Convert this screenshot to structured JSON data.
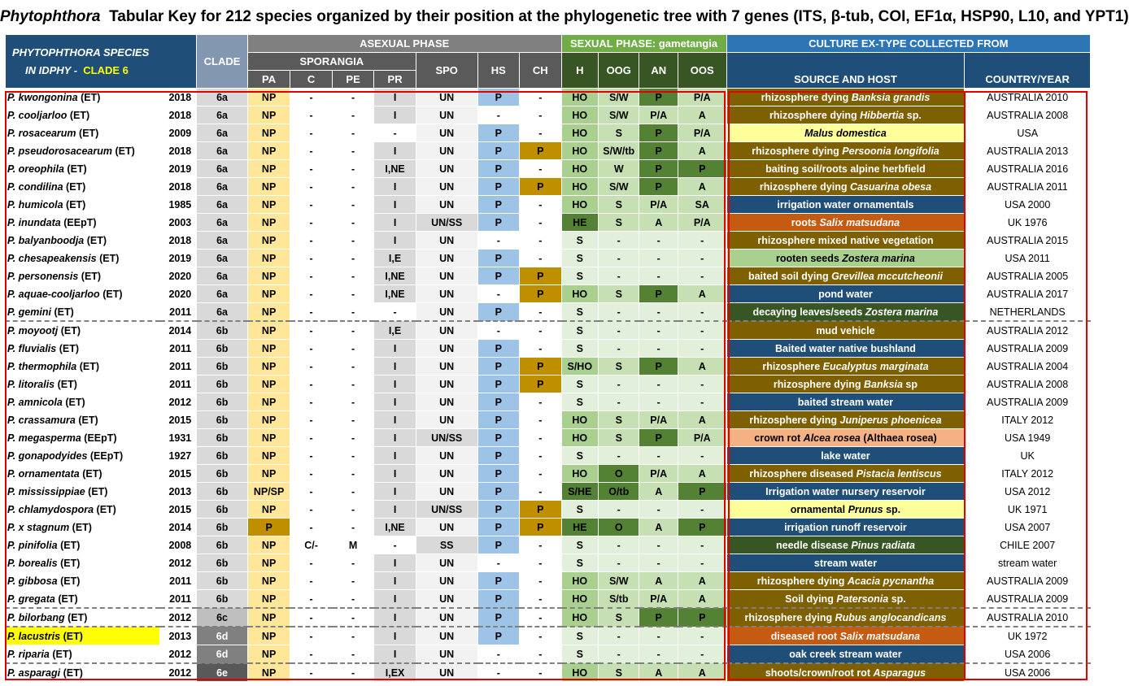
{
  "title_parts": {
    "genus": "Phytophthora",
    "rest": "Tabular Key for 212 species organized by their position at the phylogenetic tree with 7 genes (ITS, β-tub, COI, EF1α, HSP90, L10, and YPT1)"
  },
  "header": {
    "species_label1": "PHYTOPHTHORA SPECIES",
    "species_label2": "IN IDPHY -",
    "clade_label": "CLADE 6",
    "clade": "CLADE",
    "asexual": "ASEXUAL PHASE",
    "sporangia": "SPORANGIA",
    "sexual": "SEXUAL PHASE: gametangia",
    "culture": "CULTURE EX-TYPE COLLECTED FROM",
    "cols": {
      "pa": "PA",
      "c": "C",
      "pe": "PE",
      "pr": "PR",
      "spo": "SPO",
      "hs": "HS",
      "ch": "CH",
      "h": "H",
      "oog": "OOG",
      "an": "AN",
      "oos": "OOS",
      "source": "SOURCE AND HOST",
      "country": "COUNTRY/YEAR"
    }
  },
  "rows": [
    {
      "sp": "P. kwongonina",
      "tag": "(ET)",
      "yr": "2018",
      "clade": "6a",
      "pa": "NP",
      "c": "-",
      "pe": "-",
      "pr": "I",
      "spo": "UN",
      "hs": "P",
      "ch": "-",
      "h": "HO",
      "oog": "S/W",
      "an": "P",
      "oos": "P/A",
      "src": "rhizosphere dying ",
      "host": "Banksia grandis",
      "src2": "",
      "ctry": "AUSTRALIA 2010",
      "sc": "s-olive"
    },
    {
      "sp": "P. cooljarloo",
      "tag": "(ET)",
      "yr": "2018",
      "clade": "6a",
      "pa": "NP",
      "c": "-",
      "pe": "-",
      "pr": "I",
      "spo": "UN",
      "hs": "-",
      "ch": "-",
      "h": "HO",
      "oog": "S/W",
      "an": "P/A",
      "oos": "A",
      "src": "rhizosphere dying ",
      "host": "Hibbertia",
      "src2": " sp.",
      "ctry": "AUSTRALIA 2008",
      "sc": "s-olive"
    },
    {
      "sp": "P. rosacearum",
      "tag": "(ET)",
      "yr": "2009",
      "clade": "6a",
      "pa": "NP",
      "c": "-",
      "pe": "-",
      "pr": "-",
      "spo": "UN",
      "hs": "P",
      "ch": "-",
      "h": "HO",
      "oog": "S",
      "an": "P",
      "oos": "P/A",
      "src": "",
      "host": "Malus domestica",
      "src2": "",
      "ctry": "USA",
      "sc": "s-yellow"
    },
    {
      "sp": "P. pseudorosacearum",
      "tag": "(ET)",
      "yr": "2018",
      "clade": "6a",
      "pa": "NP",
      "c": "-",
      "pe": "-",
      "pr": "I",
      "spo": "UN",
      "hs": "P",
      "ch": "P",
      "h": "HO",
      "oog": "S/W/tb",
      "an": "P",
      "oos": "A",
      "src": "rhizosphere dying ",
      "host": "Persoonia longifolia",
      "src2": "",
      "ctry": "AUSTRALIA 2013",
      "sc": "s-olive"
    },
    {
      "sp": "P. oreophila",
      "tag": "(ET)",
      "yr": "2019",
      "clade": "6a",
      "pa": "NP",
      "c": "-",
      "pe": "-",
      "pr": "I,NE",
      "spo": "UN",
      "hs": "P",
      "ch": "-",
      "h": "HO",
      "oog": "W",
      "an": "P",
      "oos": "P",
      "src": "baiting soil/roots alpine herbfield",
      "host": "",
      "src2": "",
      "ctry": "AUSTRALIA 2016",
      "sc": "s-olive"
    },
    {
      "sp": "P. condilina",
      "tag": "(ET)",
      "yr": "2018",
      "clade": "6a",
      "pa": "NP",
      "c": "-",
      "pe": "-",
      "pr": "I",
      "spo": "UN",
      "hs": "P",
      "ch": "P",
      "h": "HO",
      "oog": "S/W",
      "an": "P",
      "oos": "A",
      "src": "rhizosphere dying ",
      "host": "Casuarina obesa",
      "src2": "",
      "ctry": "AUSTRALIA 2011",
      "sc": "s-olive"
    },
    {
      "sp": "P. humicola",
      "tag": "(ET)",
      "yr": "1985",
      "clade": "6a",
      "pa": "NP",
      "c": "-",
      "pe": "-",
      "pr": "I",
      "spo": "UN",
      "hs": "P",
      "ch": "-",
      "h": "HO",
      "oog": "S",
      "an": "P/A",
      "oos": "SA",
      "src": "irrigation water ornamentals",
      "host": "",
      "src2": "",
      "ctry": "USA 2000",
      "sc": "s-navy"
    },
    {
      "sp": "P. inundata",
      "tag": "(EEpT)",
      "yr": "2003",
      "clade": "6a",
      "pa": "NP",
      "c": "-",
      "pe": "-",
      "pr": "I",
      "spo": "UN/SS",
      "hs": "P",
      "ch": "-",
      "h": "HE",
      "oog": "S",
      "an": "A",
      "oos": "P/A",
      "src": "roots ",
      "host": "Salix matsudana",
      "src2": "",
      "ctry": "UK 1976",
      "sc": "s-orange"
    },
    {
      "sp": "P. balyanboodja",
      "tag": "(ET)",
      "yr": "2018",
      "clade": "6a",
      "pa": "NP",
      "c": "-",
      "pe": "-",
      "pr": "I",
      "spo": "UN",
      "hs": "-",
      "ch": "-",
      "h": "S",
      "oog": "-",
      "an": "-",
      "oos": "-",
      "src": "rhizosphere mixed native vegetation",
      "host": "",
      "src2": "",
      "ctry": "AUSTRALIA 2015",
      "sc": "s-olive"
    },
    {
      "sp": "P. chesapeakensis",
      "tag": "(ET)",
      "yr": "2019",
      "clade": "6a",
      "pa": "NP",
      "c": "-",
      "pe": "-",
      "pr": "I,E",
      "spo": "UN",
      "hs": "P",
      "ch": "-",
      "h": "S",
      "oog": "-",
      "an": "-",
      "oos": "-",
      "src": "rooten seeds ",
      "host": "Zostera marina",
      "src2": "",
      "ctry": "USA 2011",
      "sc": "s-lgreen"
    },
    {
      "sp": "P. personensis",
      "tag": "(ET)",
      "yr": "2020",
      "clade": "6a",
      "pa": "NP",
      "c": "-",
      "pe": "-",
      "pr": "I,NE",
      "spo": "UN",
      "hs": "P",
      "ch": "P",
      "h": "S",
      "oog": "-",
      "an": "-",
      "oos": "-",
      "src": "baited soil dying ",
      "host": "Grevillea mccutcheonii",
      "src2": "",
      "ctry": "AUSTRALIA 2005",
      "sc": "s-olive"
    },
    {
      "sp": "P. aquae-cooljarloo",
      "tag": "(ET)",
      "yr": "2020",
      "clade": "6a",
      "pa": "NP",
      "c": "-",
      "pe": "-",
      "pr": "I,NE",
      "spo": "UN",
      "hs": "-",
      "ch": "P",
      "h": "HO",
      "oog": "S",
      "an": "P",
      "oos": "A",
      "src": "pond water",
      "host": "",
      "src2": "",
      "ctry": "AUSTRALIA 2017",
      "sc": "s-navy"
    },
    {
      "sp": "P. gemini",
      "tag": "(ET)",
      "yr": "2011",
      "clade": "6a",
      "pa": "NP",
      "c": "-",
      "pe": "-",
      "pr": "-",
      "spo": "UN",
      "hs": "P",
      "ch": "-",
      "h": "S",
      "oog": "-",
      "an": "-",
      "oos": "-",
      "src": "decaying leaves/seeds ",
      "host": "Zostera marina",
      "src2": "",
      "ctry": "NETHERLANDS",
      "sc": "s-dgreen"
    },
    {
      "sp": "P. moyootj",
      "tag": "(ET)",
      "yr": "2014",
      "clade": "6b",
      "pa": "NP",
      "c": "-",
      "pe": "-",
      "pr": "I,E",
      "spo": "UN",
      "hs": "-",
      "ch": "-",
      "h": "S",
      "oog": "-",
      "an": "-",
      "oos": "-",
      "src": "mud vehicle",
      "host": "",
      "src2": "",
      "ctry": "AUSTRALIA 2012",
      "sc": "s-olive",
      "sep": true
    },
    {
      "sp": "P. fluvialis",
      "tag": "(ET)",
      "yr": "2011",
      "clade": "6b",
      "pa": "NP",
      "c": "-",
      "pe": "-",
      "pr": "I",
      "spo": "UN",
      "hs": "P",
      "ch": "-",
      "h": "S",
      "oog": "-",
      "an": "-",
      "oos": "-",
      "src": "Baited  water native bushland",
      "host": "",
      "src2": "",
      "ctry": "AUSTRALIA 2009",
      "sc": "s-navy"
    },
    {
      "sp": "P. thermophila",
      "tag": "(ET)",
      "yr": "2011",
      "clade": "6b",
      "pa": "NP",
      "c": "-",
      "pe": "-",
      "pr": "I",
      "spo": "UN",
      "hs": "P",
      "ch": "P",
      "h": "S/HO",
      "oog": "S",
      "an": "P",
      "oos": "A",
      "src": "rhizosphere ",
      "host": "Eucalyptus marginata",
      "src2": "",
      "ctry": "AUSTRALIA 2004",
      "sc": "s-olive"
    },
    {
      "sp": "P. litoralis",
      "tag": "(ET)",
      "yr": "2011",
      "clade": "6b",
      "pa": "NP",
      "c": "-",
      "pe": "-",
      "pr": "I",
      "spo": "UN",
      "hs": "P",
      "ch": "P",
      "h": "S",
      "oog": "-",
      "an": "-",
      "oos": "-",
      "src": "rhizosphere dying ",
      "host": "Banksia",
      "src2": " sp",
      "ctry": "AUSTRALIA 2008",
      "sc": "s-olive"
    },
    {
      "sp": "P. amnicola",
      "tag": "(ET)",
      "yr": "2012",
      "clade": "6b",
      "pa": "NP",
      "c": "-",
      "pe": "-",
      "pr": "I",
      "spo": "UN",
      "hs": "P",
      "ch": "-",
      "h": "S",
      "oog": "-",
      "an": "-",
      "oos": "-",
      "src": "baited stream water",
      "host": "",
      "src2": "",
      "ctry": "AUSTRALIA 2009",
      "sc": "s-navy"
    },
    {
      "sp": "P. crassamura",
      "tag": "(ET)",
      "yr": "2015",
      "clade": "6b",
      "pa": "NP",
      "c": "-",
      "pe": "-",
      "pr": "I",
      "spo": "UN",
      "hs": "P",
      "ch": "-",
      "h": "HO",
      "oog": "S",
      "an": "P/A",
      "oos": "A",
      "src": "rhizosphere dying ",
      "host": "Juniperus phoenicea",
      "src2": "",
      "ctry": "ITALY 2012",
      "sc": "s-olive"
    },
    {
      "sp": "P. megasperma",
      "tag": "(EEpT)",
      "yr": "1931",
      "clade": "6b",
      "pa": "NP",
      "c": "-",
      "pe": "-",
      "pr": "I",
      "spo": "UN/SS",
      "hs": "P",
      "ch": "-",
      "h": "HO",
      "oog": "S",
      "an": "P",
      "oos": "P/A",
      "src": "crown rot ",
      "host": "Alcea rosea",
      "src2": " (Althaea rosea)",
      "ctry": "USA 1949",
      "sc": "s-peach"
    },
    {
      "sp": "P. gonapodyides",
      "tag": "(EEpT)",
      "yr": "1927",
      "clade": "6b",
      "pa": "NP",
      "c": "-",
      "pe": "-",
      "pr": "I",
      "spo": "UN",
      "hs": "P",
      "ch": "-",
      "h": "S",
      "oog": "-",
      "an": "-",
      "oos": "-",
      "src": "lake water",
      "host": "",
      "src2": "",
      "ctry": "UK",
      "sc": "s-navy"
    },
    {
      "sp": "P. ornamentata",
      "tag": "(ET)",
      "yr": "2015",
      "clade": "6b",
      "pa": "NP",
      "c": "-",
      "pe": "-",
      "pr": "I",
      "spo": "UN",
      "hs": "P",
      "ch": "-",
      "h": "HO",
      "oog": "O",
      "an": "P/A",
      "oos": "A",
      "src": "rhizosphere diseased ",
      "host": "Pistacia lentiscus",
      "src2": "",
      "ctry": "ITALY 2012",
      "sc": "s-olive"
    },
    {
      "sp": "P. mississippiae",
      "tag": "(ET)",
      "yr": "2013",
      "clade": "6b",
      "pa": "NP/SP",
      "c": "-",
      "pe": "-",
      "pr": "I",
      "spo": "UN",
      "hs": "P",
      "ch": "-",
      "h": "S/HE",
      "oog": "O/tb",
      "an": "A",
      "oos": "P",
      "src": "Irrigation water nursery reservoir",
      "host": "",
      "src2": "",
      "ctry": "USA 2012",
      "sc": "s-navy"
    },
    {
      "sp": "P. chlamydospora",
      "tag": "(ET)",
      "yr": "2015",
      "clade": "6b",
      "pa": "NP",
      "c": "-",
      "pe": "-",
      "pr": "I",
      "spo": "UN/SS",
      "hs": "P",
      "ch": "P",
      "h": "S",
      "oog": "-",
      "an": "-",
      "oos": "-",
      "src": "ornamental ",
      "host": "Prunus",
      "src2": " sp.",
      "ctry": "UK 1971",
      "sc": "s-yellow"
    },
    {
      "sp": "P. x stagnum",
      "tag": "(ET)",
      "yr": "2014",
      "clade": "6b",
      "pa": "P",
      "c": "-",
      "pe": "-",
      "pr": "I,NE",
      "spo": "UN",
      "hs": "P",
      "ch": "P",
      "h": "HE",
      "oog": "O",
      "an": "A",
      "oos": "P",
      "src": "irrigation runoff reservoir",
      "host": "",
      "src2": "",
      "ctry": "USA 2007",
      "sc": "s-navy"
    },
    {
      "sp": "P. pinifolia",
      "tag": "(ET)",
      "yr": "2008",
      "clade": "6b",
      "pa": "NP",
      "c": "C/-",
      "pe": "M",
      "pr": "-",
      "spo": "SS",
      "hs": "P",
      "ch": "-",
      "h": "S",
      "oog": "-",
      "an": "-",
      "oos": "-",
      "src": "needle disease ",
      "host": "Pinus radiata",
      "src2": "",
      "ctry": "CHILE 2007",
      "sc": "s-dgreen"
    },
    {
      "sp": "P. borealis",
      "tag": "(ET)",
      "yr": "2012",
      "clade": "6b",
      "pa": "NP",
      "c": "-",
      "pe": "-",
      "pr": "I",
      "spo": "UN",
      "hs": "-",
      "ch": "-",
      "h": "S",
      "oog": "-",
      "an": "-",
      "oos": "-",
      "src": "stream water",
      "host": "",
      "src2": "",
      "ctry": "stream water",
      "sc": "s-navy"
    },
    {
      "sp": "P. gibbosa",
      "tag": "(ET)",
      "yr": "2011",
      "clade": "6b",
      "pa": "NP",
      "c": "-",
      "pe": "-",
      "pr": "I",
      "spo": "UN",
      "hs": "P",
      "ch": "-",
      "h": "HO",
      "oog": "S/W",
      "an": "A",
      "oos": "A",
      "src": "rhizosphere dying ",
      "host": "Acacia pycnantha",
      "src2": "",
      "ctry": "AUSTRALIA 2009",
      "sc": "s-olive"
    },
    {
      "sp": "P. gregata",
      "tag": "(ET)",
      "yr": "2011",
      "clade": "6b",
      "pa": "NP",
      "c": "-",
      "pe": "-",
      "pr": "I",
      "spo": "UN",
      "hs": "P",
      "ch": "-",
      "h": "HO",
      "oog": "S/tb",
      "an": "P/A",
      "oos": "A",
      "src": "Soil dying ",
      "host": "Patersonia",
      "src2": " sp.",
      "ctry": "AUSTRALIA 2009",
      "sc": "s-olive"
    },
    {
      "sp": "P. bilorbang",
      "tag": "(ET)",
      "yr": "2012",
      "clade": "6c",
      "pa": "NP",
      "c": "-",
      "pe": "-",
      "pr": "I",
      "spo": "UN",
      "hs": "P",
      "ch": "-",
      "h": "HO",
      "oog": "S",
      "an": "P",
      "oos": "P",
      "src": "rhizosphere dying ",
      "host": "Rubus anglocandicans",
      "src2": "",
      "ctry": "AUSTRALIA 2010",
      "sc": "s-olive",
      "sep": true
    },
    {
      "sp": "P. lacustris",
      "tag": "(ET)",
      "yr": "2013",
      "clade": "6d",
      "pa": "NP",
      "c": "-",
      "pe": "-",
      "pr": "I",
      "spo": "UN",
      "hs": "P",
      "ch": "-",
      "h": "S",
      "oog": "-",
      "an": "-",
      "oos": "-",
      "src": "diseased root ",
      "host": "Salix matsudana",
      "src2": "",
      "ctry": "UK 1972",
      "sc": "s-orange",
      "sep": true,
      "hl": true
    },
    {
      "sp": "P. riparia",
      "tag": "(ET)",
      "yr": "2012",
      "clade": "6d",
      "pa": "NP",
      "c": "-",
      "pe": "-",
      "pr": "I",
      "spo": "UN",
      "hs": "-",
      "ch": "-",
      "h": "S",
      "oog": "-",
      "an": "-",
      "oos": "-",
      "src": "oak creek stream water",
      "host": "",
      "src2": "",
      "ctry": "USA 2006",
      "sc": "s-navy"
    },
    {
      "sp": "P. asparagi",
      "tag": "(ET)",
      "yr": "2012",
      "clade": "6e",
      "pa": "NP",
      "c": "-",
      "pe": "-",
      "pr": "I,EX",
      "spo": "UN",
      "hs": "-",
      "ch": "-",
      "h": "HO",
      "oog": "S",
      "an": "A",
      "oos": "A",
      "src": "shoots/crown/root rot ",
      "host": "Asparagus",
      "src2": "",
      "ctry": "USA 2006",
      "sc": "s-olive",
      "sep": true
    }
  ]
}
